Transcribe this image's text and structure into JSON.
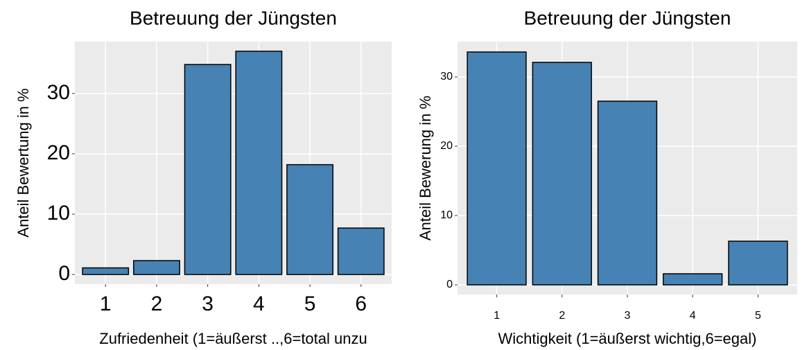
{
  "chart_data": [
    {
      "type": "bar",
      "title": "Betreuung der Jüngsten",
      "x_label": "Zufriedenheit (1=äußerst ..,6=total unzu",
      "y_label": "Anteil Bewertung in %",
      "categories": [
        "1",
        "2",
        "3",
        "4",
        "5",
        "6"
      ],
      "values": [
        1.1,
        2.3,
        34.8,
        37.0,
        18.2,
        7.7
      ],
      "color": "#4682b4",
      "ylim": [
        -1.6,
        38.6
      ],
      "yticks": [
        0,
        10,
        20,
        30
      ],
      "grid": true
    },
    {
      "type": "bar",
      "title": "Betreuung der Jüngsten",
      "x_label": "Wichtigkeit (1=äußerst wichtig,6=egal)",
      "y_label": "Anteil Bewerung in %",
      "categories": [
        "1",
        "2",
        "3",
        "4",
        "5"
      ],
      "values": [
        33.6,
        32.1,
        26.5,
        1.6,
        6.3
      ],
      "color": "#4682b4",
      "ylim": [
        -1.4,
        35.1
      ],
      "yticks": [
        0,
        10,
        20,
        30
      ],
      "grid": true
    }
  ]
}
